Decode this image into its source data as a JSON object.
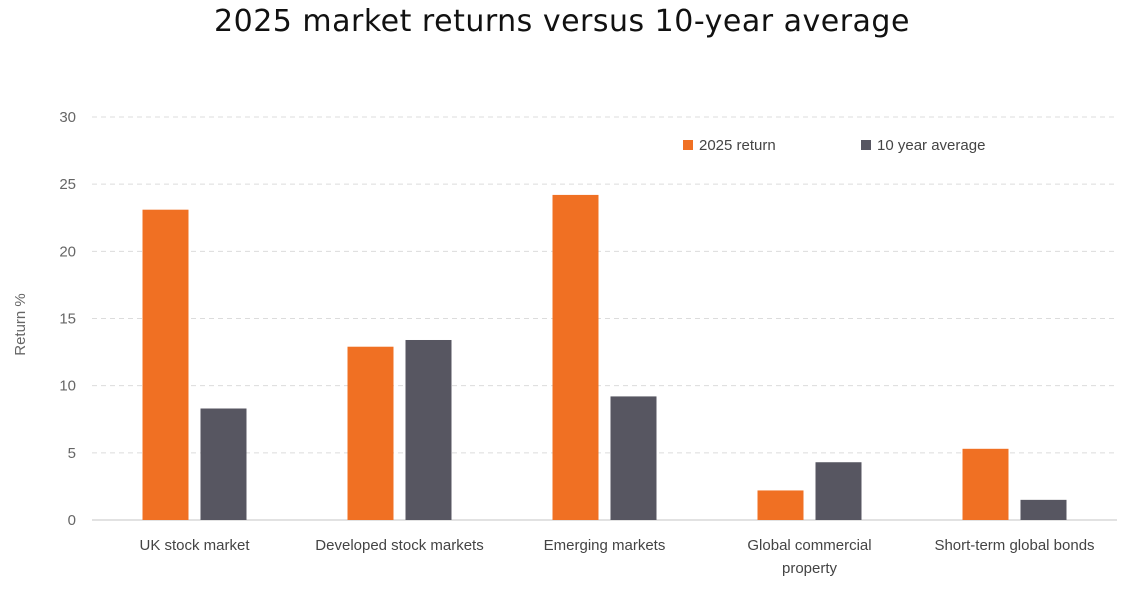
{
  "chart_data": {
    "type": "bar",
    "title": "2025 market returns versus 10-year average",
    "xlabel": "",
    "ylabel": "Return %",
    "ylim": [
      0,
      30
    ],
    "yticks": [
      0,
      5,
      10,
      15,
      20,
      25,
      30
    ],
    "grid": true,
    "legend_position": "top-right",
    "categories": [
      [
        "UK stock market"
      ],
      [
        "Developed stock markets"
      ],
      [
        "Emerging markets"
      ],
      [
        "Global commercial",
        "property"
      ],
      [
        "Short-term global bonds"
      ]
    ],
    "series": [
      {
        "name": "2025 return",
        "color": "#f07023",
        "values": [
          23.1,
          12.9,
          24.2,
          2.2,
          5.3
        ]
      },
      {
        "name": "10 year average",
        "color": "#575661",
        "values": [
          8.3,
          13.4,
          9.2,
          4.3,
          1.5
        ]
      }
    ]
  }
}
